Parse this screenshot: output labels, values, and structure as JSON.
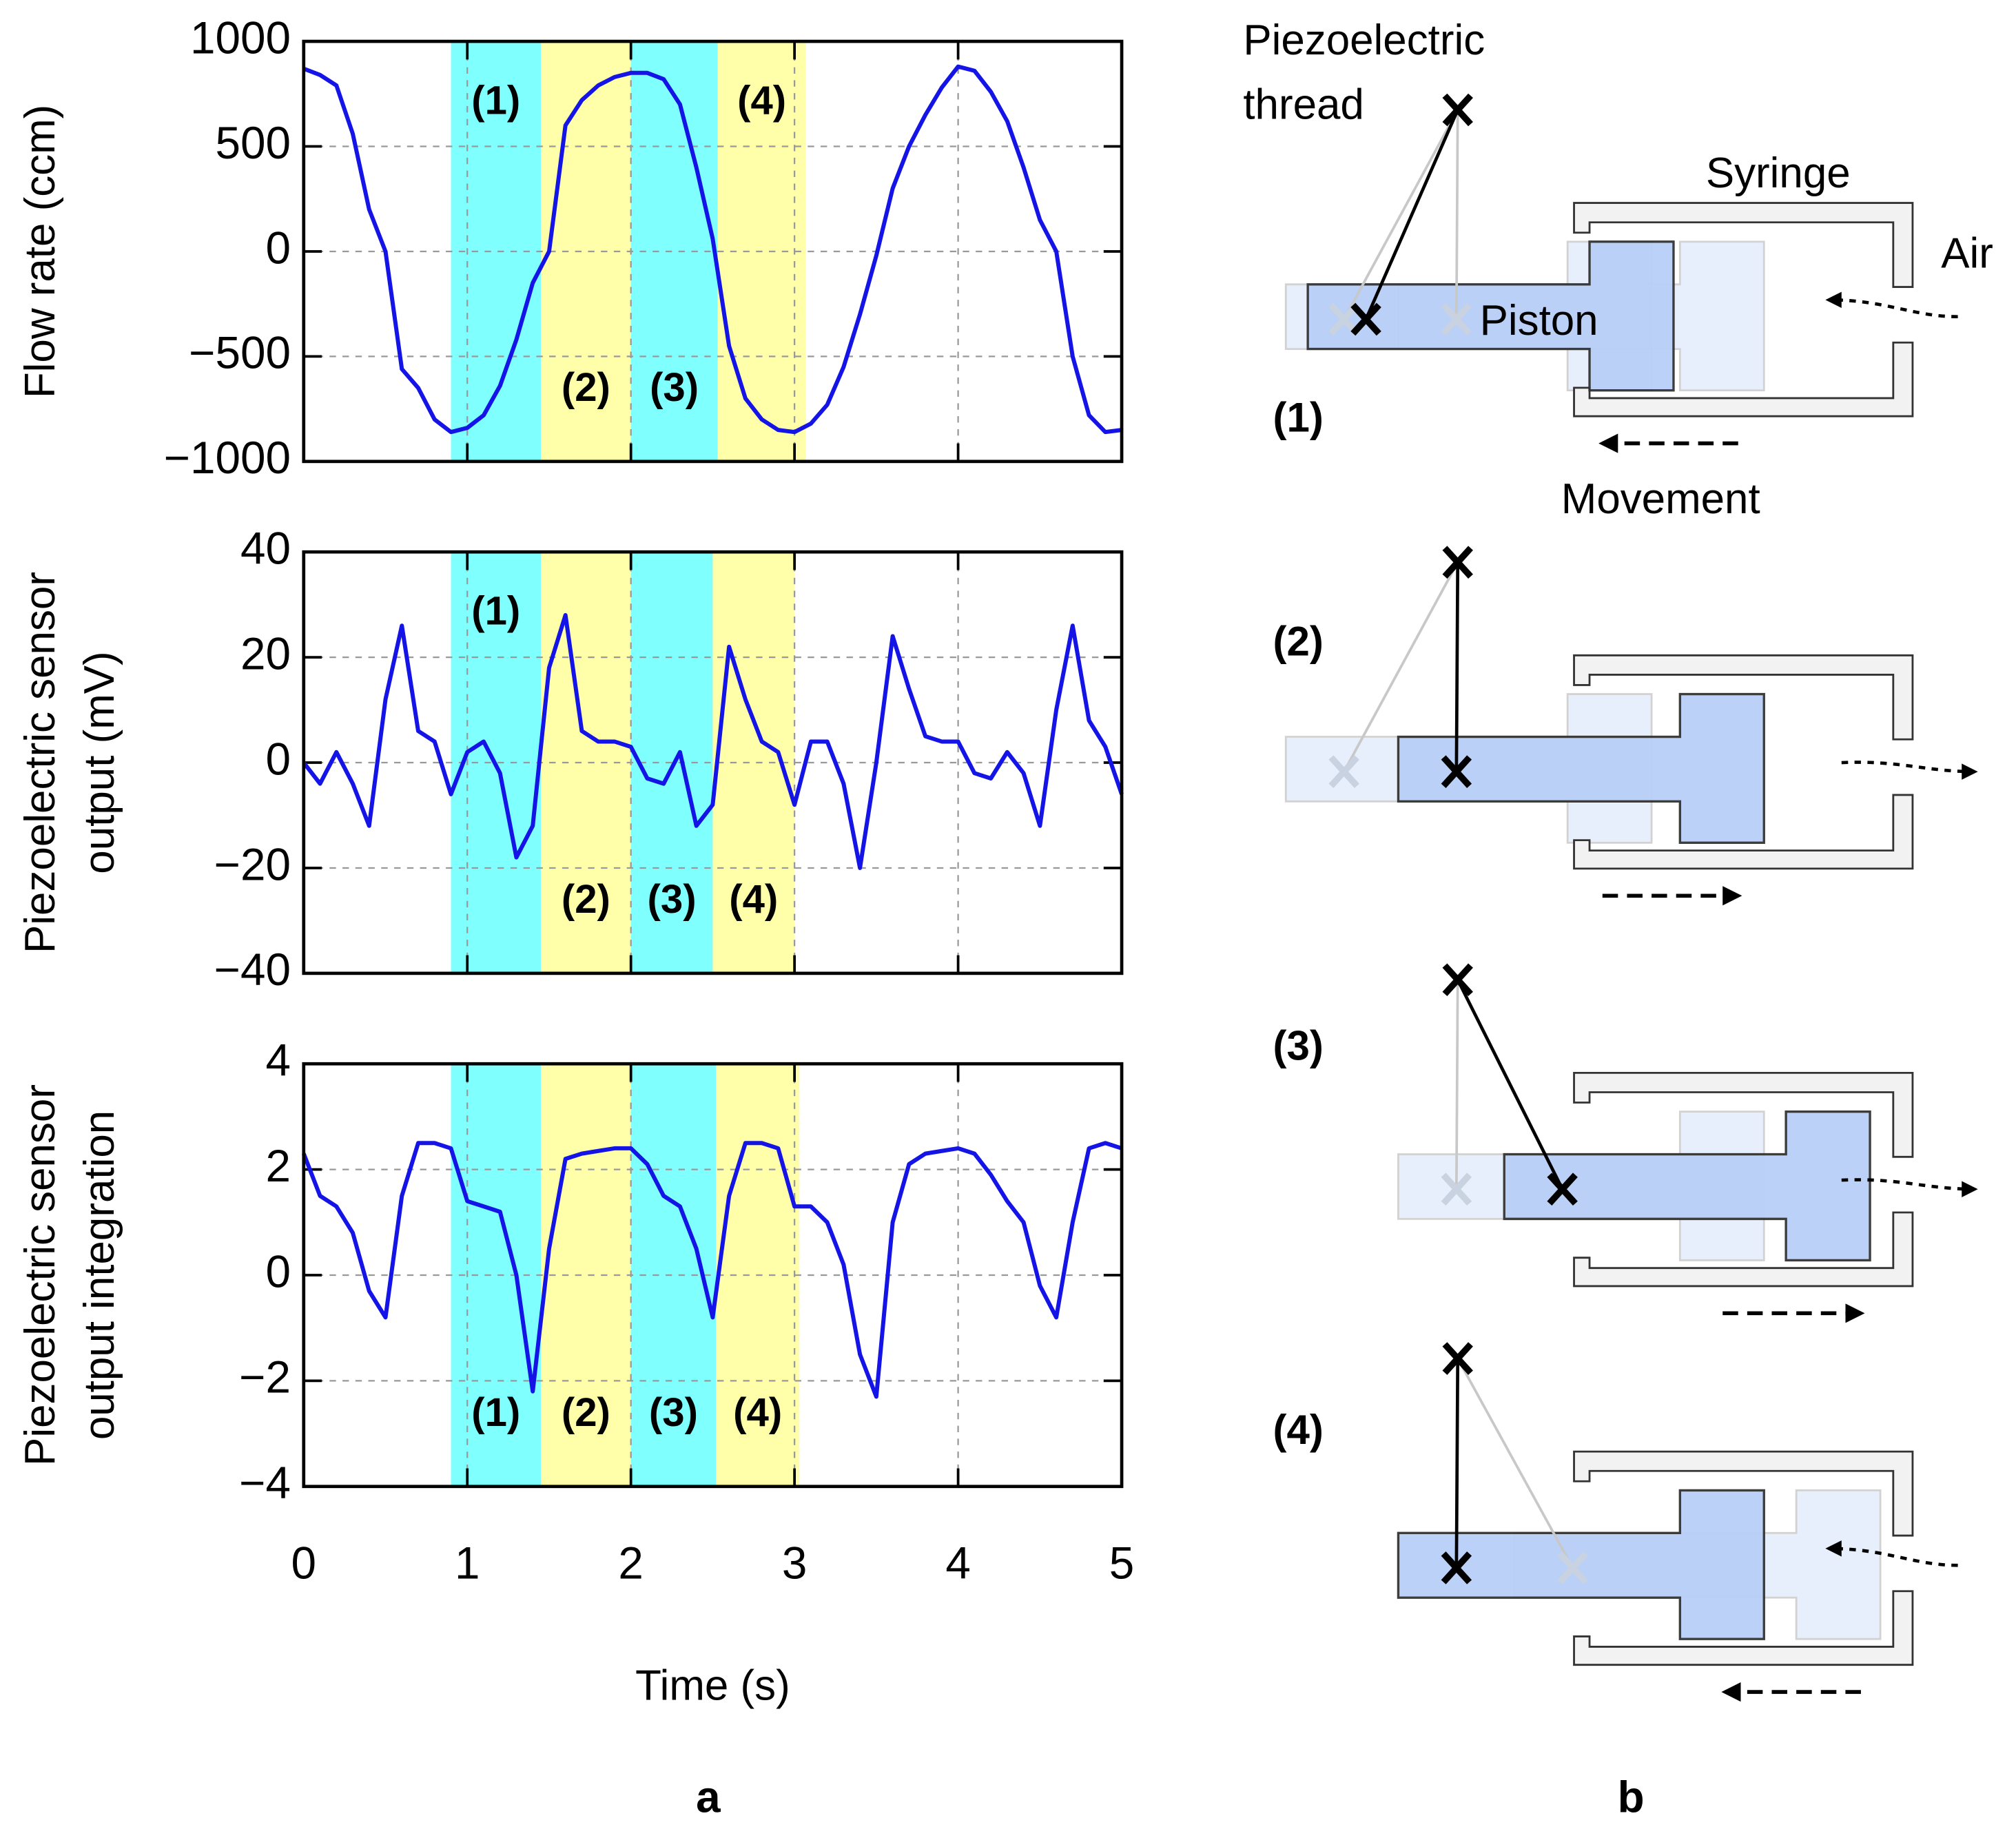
{
  "chart_data": [
    {
      "type": "line",
      "ylabel": [
        "Flow rate (ccm)"
      ],
      "show_xtick_labels": false,
      "xlim": [
        0,
        5
      ],
      "xticks": [
        0,
        1,
        2,
        3,
        4,
        5
      ],
      "ylim": [
        -1000,
        1000
      ],
      "yticks": [
        {
          "value": -1000,
          "label": "−1000"
        },
        {
          "value": -500,
          "label": "−500"
        },
        0,
        500,
        1000
      ],
      "grid": true,
      "phases": [
        {
          "label": "(1)",
          "start": 0.9,
          "end": 1.45,
          "color": "#80ffff"
        },
        {
          "label": "(2)",
          "start": 1.45,
          "end": 2.0,
          "color": "#ffffaa"
        },
        {
          "label": "(3)",
          "start": 2.0,
          "end": 2.53,
          "color": "#80ffff"
        },
        {
          "label": "(4)",
          "start": 2.53,
          "end": 3.07,
          "color": "#ffffaa"
        }
      ],
      "x": [
        0,
        0.1,
        0.2,
        0.3,
        0.4,
        0.5,
        0.6,
        0.7,
        0.8,
        0.9,
        1,
        1.1,
        1.2,
        1.3,
        1.4,
        1.5,
        1.6,
        1.7,
        1.8,
        1.9,
        2,
        2.1,
        2.2,
        2.3,
        2.4,
        2.5,
        2.6,
        2.7,
        2.8,
        2.9,
        3,
        3.1,
        3.2,
        3.3,
        3.4,
        3.5,
        3.6,
        3.7,
        3.8,
        3.9,
        4,
        4.1,
        4.2,
        4.3,
        4.4,
        4.5,
        4.6,
        4.7,
        4.8,
        4.9,
        5
      ],
      "series": [
        {
          "color": "#1414e6",
          "values": [
            870,
            840,
            790,
            560,
            200,
            0,
            -560,
            -650,
            -800,
            -860,
            -840,
            -780,
            -640,
            -420,
            -150,
            0,
            600,
            720,
            790,
            830,
            850,
            850,
            820,
            700,
            400,
            60,
            -450,
            -700,
            -800,
            -850,
            -860,
            -820,
            -730,
            -550,
            -300,
            -20,
            300,
            500,
            650,
            780,
            880,
            860,
            760,
            620,
            400,
            150,
            0,
            -500,
            -780,
            -860,
            -850
          ]
        }
      ]
    },
    {
      "type": "line",
      "ylabel": [
        "Piezoelectric sensor",
        "output (mV)"
      ],
      "show_xtick_labels": false,
      "xlim": [
        0,
        5
      ],
      "xticks": [
        0,
        1,
        2,
        3,
        4,
        5
      ],
      "ylim": [
        -40,
        40
      ],
      "yticks": [
        {
          "value": -40,
          "label": "−40"
        },
        {
          "value": -20,
          "label": "−20"
        },
        0,
        20,
        40
      ],
      "grid": true,
      "phases": [
        {
          "label": "(1)",
          "start": 0.9,
          "end": 1.45,
          "color": "#80ffff"
        },
        {
          "label": "(2)",
          "start": 1.45,
          "end": 2.0,
          "color": "#ffffaa"
        },
        {
          "label": "(3)",
          "start": 2.0,
          "end": 2.5,
          "color": "#80ffff"
        },
        {
          "label": "(4)",
          "start": 2.5,
          "end": 3.0,
          "color": "#ffffaa"
        }
      ],
      "x": [
        0,
        0.1,
        0.2,
        0.3,
        0.4,
        0.5,
        0.6,
        0.7,
        0.8,
        0.9,
        1,
        1.1,
        1.2,
        1.3,
        1.4,
        1.5,
        1.6,
        1.7,
        1.8,
        1.9,
        2,
        2.1,
        2.2,
        2.3,
        2.4,
        2.5,
        2.6,
        2.7,
        2.8,
        2.9,
        3,
        3.1,
        3.2,
        3.3,
        3.4,
        3.5,
        3.6,
        3.7,
        3.8,
        3.9,
        4,
        4.1,
        4.2,
        4.3,
        4.4,
        4.5,
        4.6,
        4.7,
        4.8,
        4.9,
        5
      ],
      "series": [
        {
          "color": "#1414e6",
          "values": [
            0,
            -4,
            2,
            -4,
            -12,
            12,
            26,
            6,
            4,
            -6,
            2,
            4,
            -2,
            -18,
            -12,
            18,
            28,
            6,
            4,
            4,
            3,
            -3,
            -4,
            2,
            -12,
            -8,
            22,
            12,
            4,
            2,
            -8,
            4,
            4,
            -4,
            -20,
            0,
            24,
            14,
            5,
            4,
            4,
            -2,
            -3,
            2,
            -2,
            -12,
            10,
            26,
            8,
            3,
            -6
          ]
        }
      ]
    },
    {
      "type": "line",
      "ylabel": [
        "Piezoelectric sensor",
        "output integration"
      ],
      "xlabel": "Time (s)",
      "show_xtick_labels": true,
      "xlim": [
        0,
        5
      ],
      "xticks": [
        0,
        1,
        2,
        3,
        4,
        5
      ],
      "ylim": [
        -4,
        4
      ],
      "yticks": [
        {
          "value": -4,
          "label": "−4"
        },
        {
          "value": -2,
          "label": "−2"
        },
        0,
        2,
        4
      ],
      "grid": true,
      "phases": [
        {
          "label": "(1)",
          "start": 0.9,
          "end": 1.45,
          "color": "#80ffff"
        },
        {
          "label": "(2)",
          "start": 1.45,
          "end": 2.0,
          "color": "#ffffaa"
        },
        {
          "label": "(3)",
          "start": 2.0,
          "end": 2.52,
          "color": "#80ffff"
        },
        {
          "label": "(4)",
          "start": 2.52,
          "end": 3.03,
          "color": "#ffffaa"
        }
      ],
      "x": [
        0,
        0.1,
        0.2,
        0.3,
        0.4,
        0.5,
        0.6,
        0.7,
        0.8,
        0.9,
        1,
        1.1,
        1.2,
        1.3,
        1.4,
        1.5,
        1.6,
        1.7,
        1.8,
        1.9,
        2,
        2.1,
        2.2,
        2.3,
        2.4,
        2.5,
        2.6,
        2.7,
        2.8,
        2.9,
        3,
        3.1,
        3.2,
        3.3,
        3.4,
        3.5,
        3.6,
        3.7,
        3.8,
        3.9,
        4,
        4.1,
        4.2,
        4.3,
        4.4,
        4.5,
        4.6,
        4.7,
        4.8,
        4.9,
        5
      ],
      "series": [
        {
          "color": "#1414e6",
          "values": [
            2.3,
            1.5,
            1.3,
            0.8,
            -0.3,
            -0.8,
            1.5,
            2.5,
            2.5,
            2.4,
            1.4,
            1.3,
            1.2,
            0,
            -2.2,
            0.5,
            2.2,
            2.3,
            2.35,
            2.4,
            2.4,
            2.1,
            1.5,
            1.3,
            0.5,
            -0.8,
            1.5,
            2.5,
            2.5,
            2.4,
            1.3,
            1.3,
            1.0,
            0.2,
            -1.5,
            -2.3,
            1.0,
            2.1,
            2.3,
            2.35,
            2.4,
            2.3,
            1.9,
            1.4,
            1.0,
            -0.2,
            -0.8,
            1.0,
            2.4,
            2.5,
            2.4
          ]
        }
      ]
    }
  ],
  "diagram": {
    "thread_label": [
      "Piezoelectric",
      "thread"
    ],
    "syringe_label": "Syringe",
    "air_label": "Air",
    "piston_label": "Piston",
    "movement_label": "Movement",
    "stages": [
      "(1)",
      "(2)",
      "(3)",
      "(4)"
    ]
  },
  "panels": [
    "a",
    "b"
  ]
}
